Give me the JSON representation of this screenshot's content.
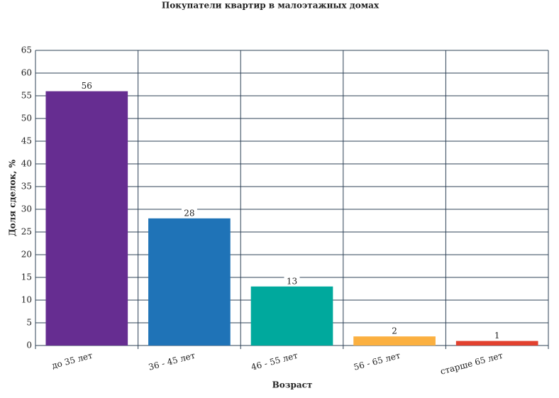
{
  "chart_data": {
    "type": "bar",
    "title": "Покупатели квартир в малоэтажных домах",
    "x_label": "Возраст",
    "y_label": "Доля сделок, %",
    "categories": [
      "до 35 лет",
      "36 - 45 лет",
      "46 - 55 лет",
      "56 - 65 лет",
      "старше 65 лет"
    ],
    "values": [
      56,
      28,
      13,
      2,
      1
    ],
    "colors": [
      "#662d91",
      "#1f73b7",
      "#00a99d",
      "#fbb040",
      "#e2412f"
    ],
    "ylim": [
      0,
      65
    ],
    "yticks": [
      0,
      5,
      10,
      15,
      20,
      25,
      30,
      35,
      40,
      45,
      50,
      55,
      60,
      65
    ],
    "grid": true
  }
}
